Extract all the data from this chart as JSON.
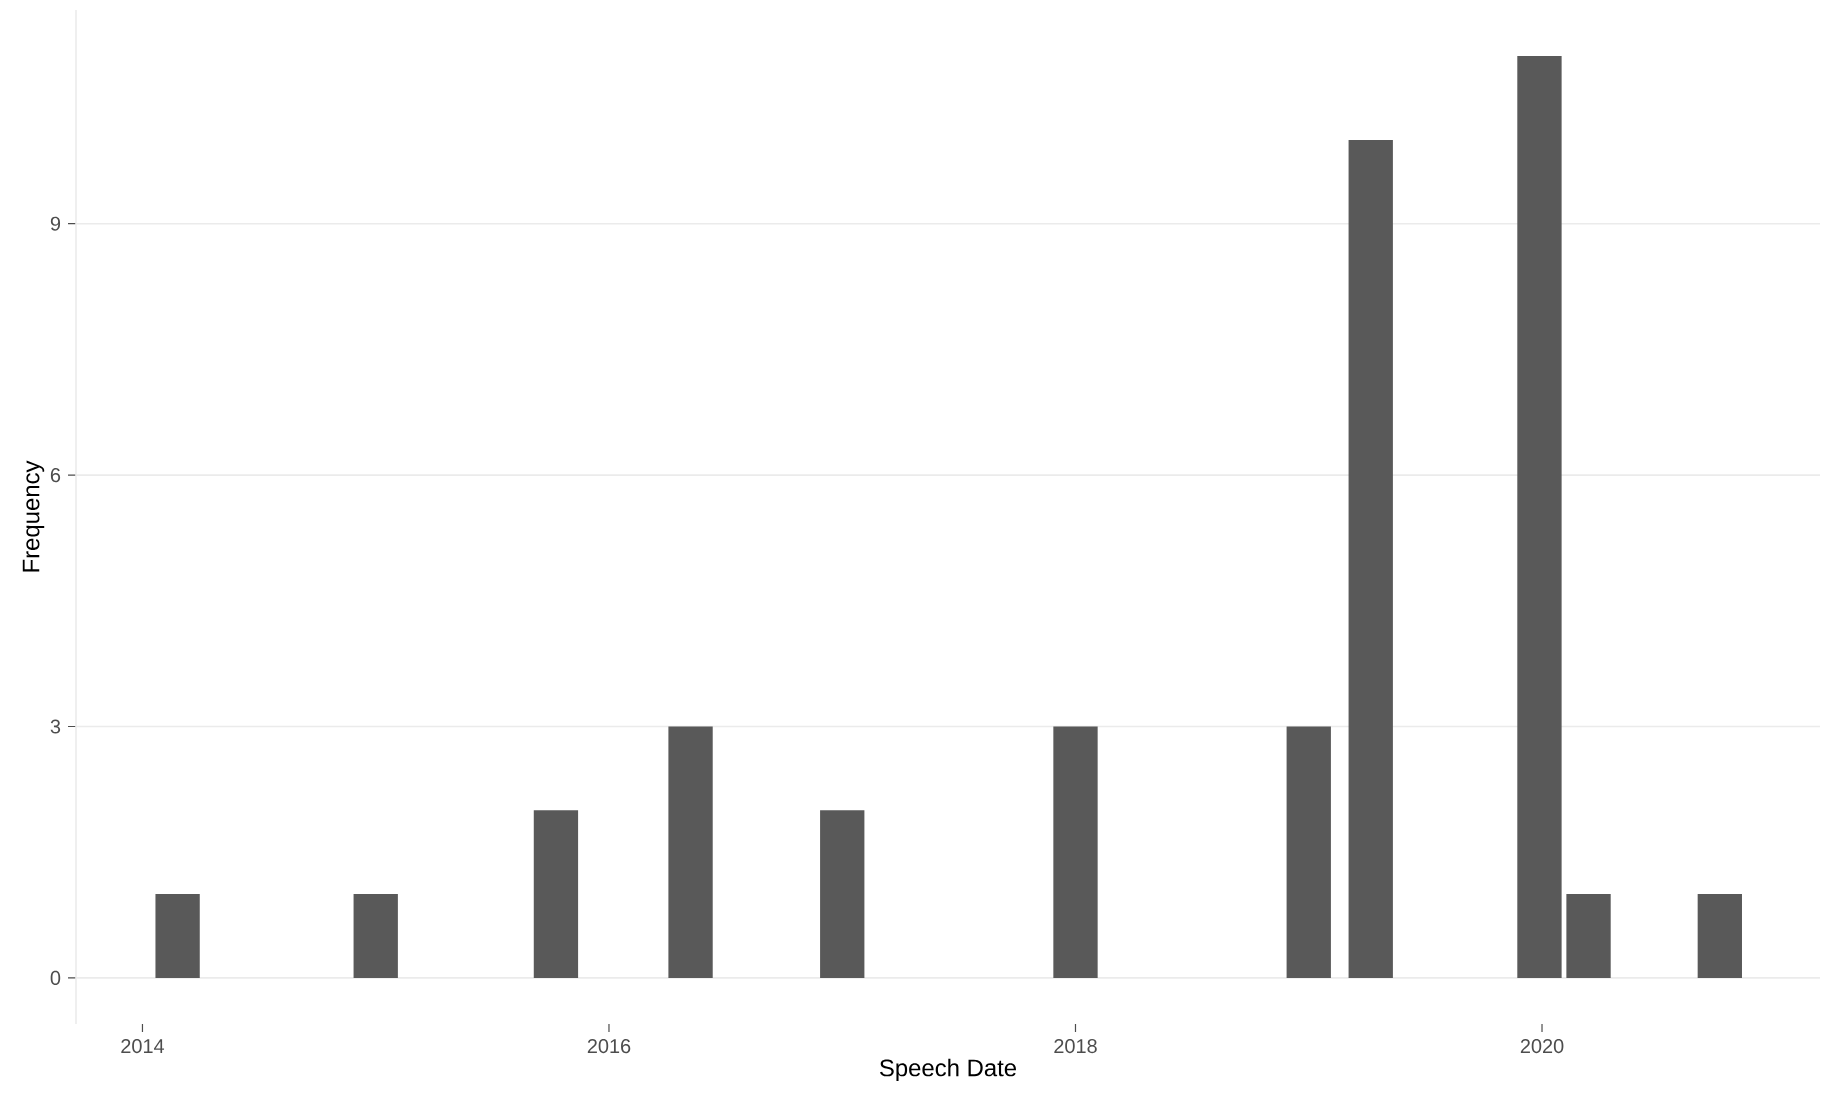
{
  "chart_data": {
    "type": "bar",
    "xlabel": "Speech Date",
    "ylabel": "Frequency",
    "x": [
      "2014-02-25",
      "2015-01-01",
      "2015-10-10",
      "2016-05-08",
      "2017-01-01",
      "2018-01-01",
      "2019-01-01",
      "2019-04-08",
      "2019-12-28",
      "2020-03-14",
      "2020-10-06"
    ],
    "values": [
      1,
      1,
      2,
      3,
      2,
      3,
      3,
      10,
      11,
      1,
      1
    ],
    "color": "#595959",
    "xlim": [
      "2013-09-19",
      "2021-03-12"
    ],
    "xticks": [
      {
        "value": "2014",
        "label": "2014"
      },
      {
        "value": "2016",
        "label": "2016"
      },
      {
        "value": "2018",
        "label": "2018"
      },
      {
        "value": "2020",
        "label": "2020"
      }
    ],
    "ylim": [
      -0.55,
      11.55
    ],
    "yticks": [
      0,
      3,
      6,
      9
    ],
    "grid": "y"
  }
}
